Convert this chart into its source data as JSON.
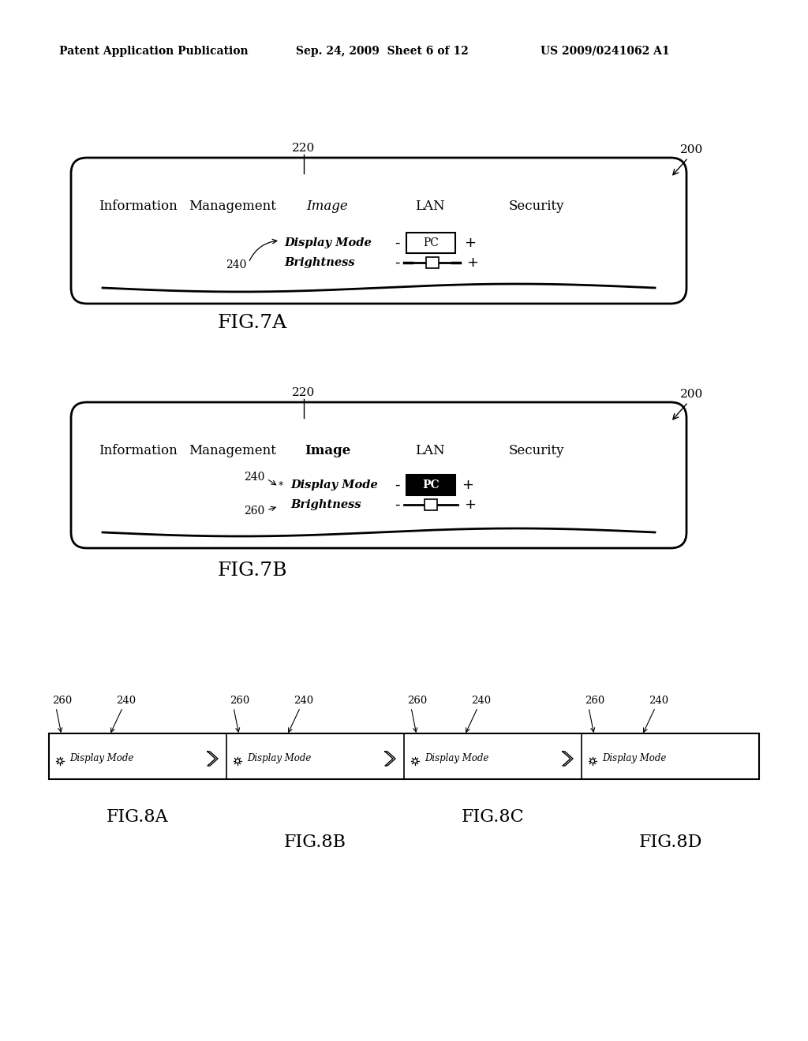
{
  "header_left": "Patent Application Publication",
  "header_mid": "Sep. 24, 2009  Sheet 6 of 12",
  "header_right": "US 2009/0241062 A1",
  "fig7a_label": "FIG.7A",
  "fig7b_label": "FIG.7B",
  "fig8a_label": "FIG.8A",
  "fig8b_label": "FIG.8B",
  "fig8c_label": "FIG.8C",
  "fig8d_label": "FIG.8D",
  "menu_tabs": [
    "Information",
    "Management",
    "Image",
    "LAN",
    "Security"
  ],
  "bg_color": "#ffffff",
  "fg_color": "#000000"
}
